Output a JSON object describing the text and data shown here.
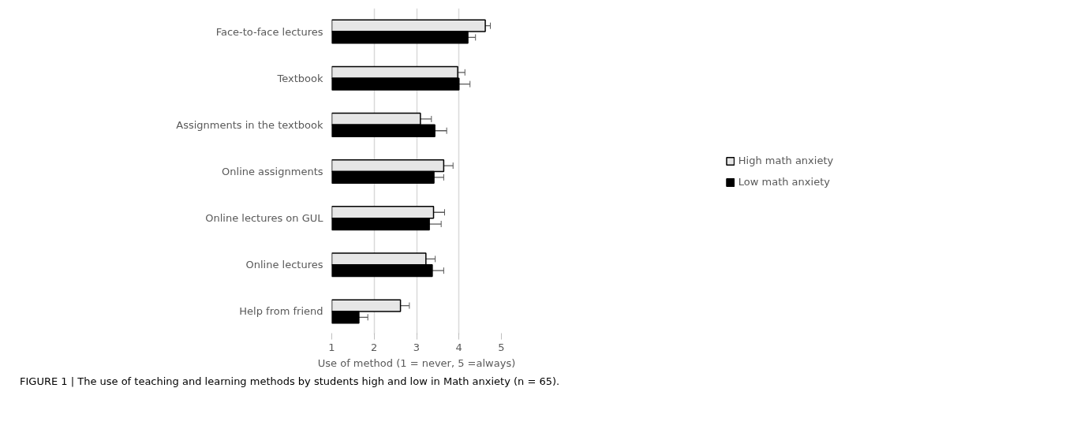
{
  "chart_data": {
    "type": "bar",
    "orientation": "horizontal",
    "categories": [
      "Face-to-face lectures",
      "Textbook",
      "Assignments in the textbook",
      "Online assignments",
      "Online lectures on GUL",
      "Online lectures",
      "Help from friend"
    ],
    "series": [
      {
        "name": "High math anxiety",
        "color": "#e6e6e6",
        "values": [
          4.62,
          3.97,
          3.09,
          3.64,
          3.4,
          3.22,
          2.62
        ],
        "errors": [
          0.12,
          0.17,
          0.26,
          0.22,
          0.26,
          0.22,
          0.21
        ]
      },
      {
        "name": "Low math anxiety",
        "color": "#000000",
        "values": [
          4.21,
          4.0,
          3.43,
          3.41,
          3.3,
          3.37,
          1.64
        ],
        "errors": [
          0.18,
          0.26,
          0.28,
          0.23,
          0.28,
          0.27,
          0.21
        ]
      }
    ],
    "xlim": [
      1,
      5
    ],
    "xticks": [
      1,
      2,
      3,
      4,
      5
    ],
    "xlabel": "Use of method (1 = never, 5 =always)",
    "grid": "x",
    "legend": "right",
    "annotations": [
      "FIGURE 1 | The use of teaching and learning methods by students high and low in Math anxiety (n =  65)."
    ]
  }
}
